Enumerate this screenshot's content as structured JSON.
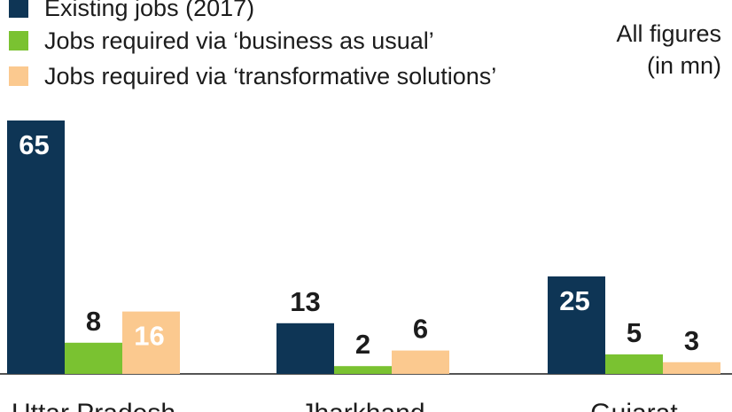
{
  "note": {
    "line1": "All figures",
    "line2": "(in mn)"
  },
  "chart_data": {
    "type": "bar",
    "title": "",
    "xlabel": "",
    "ylabel": "",
    "ylim": [
      0,
      65
    ],
    "categories": [
      "Uttar Pradesh",
      "Jharkhand",
      "Gujarat"
    ],
    "series": [
      {
        "name": "Existing jobs (2017)",
        "color": "#0e3555",
        "values": [
          65,
          13,
          25
        ]
      },
      {
        "name": "Jobs required via ‘business as usual’",
        "color": "#7ac231",
        "values": [
          8,
          2,
          5
        ]
      },
      {
        "name": "Jobs required via ‘transformative solutions’",
        "color": "#fbc98f",
        "values": [
          16,
          6,
          3
        ]
      }
    ],
    "legend_position": "top-left",
    "grid": false
  }
}
